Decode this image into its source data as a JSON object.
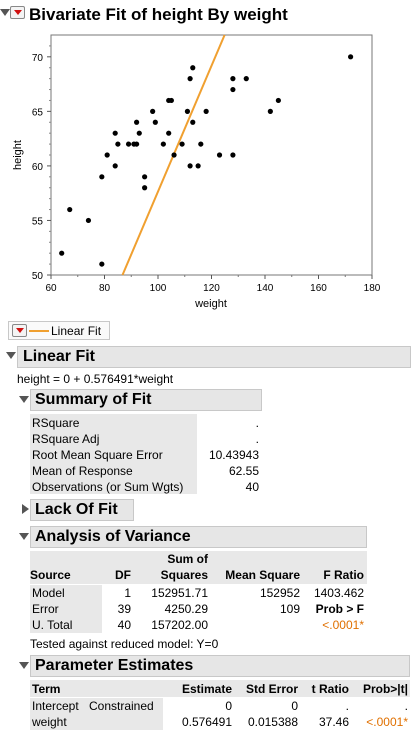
{
  "title": "Bivariate Fit of height By weight",
  "chart_data": {
    "type": "scatter",
    "xlabel": "weight",
    "ylabel": "height",
    "xlim": [
      60,
      180
    ],
    "ylim": [
      50,
      72
    ],
    "xticks": [
      "60",
      "80",
      "100",
      "120",
      "140",
      "160",
      "180"
    ],
    "yticks": [
      "50",
      "55",
      "60",
      "65",
      "70"
    ],
    "points": [
      [
        64,
        52
      ],
      [
        67,
        56
      ],
      [
        74,
        55
      ],
      [
        79,
        51
      ],
      [
        79,
        59
      ],
      [
        81,
        61
      ],
      [
        84,
        60
      ],
      [
        84,
        63
      ],
      [
        85,
        62
      ],
      [
        89,
        62
      ],
      [
        91,
        62
      ],
      [
        92,
        64
      ],
      [
        92,
        62
      ],
      [
        93,
        63
      ],
      [
        95,
        59
      ],
      [
        95,
        58
      ],
      [
        98,
        65
      ],
      [
        99,
        64
      ],
      [
        102,
        62
      ],
      [
        104,
        63
      ],
      [
        104,
        66
      ],
      [
        105,
        66
      ],
      [
        106,
        61
      ],
      [
        109,
        62
      ],
      [
        111,
        65
      ],
      [
        112,
        68
      ],
      [
        113,
        64
      ],
      [
        112,
        60
      ],
      [
        113,
        69
      ],
      [
        115,
        60
      ],
      [
        116,
        62
      ],
      [
        118,
        65
      ],
      [
        123,
        61
      ],
      [
        128,
        68
      ],
      [
        128,
        67
      ],
      [
        128,
        61
      ],
      [
        133,
        68
      ],
      [
        142,
        65
      ],
      [
        145,
        66
      ],
      [
        172,
        70
      ]
    ],
    "fit": {
      "intercept": 0,
      "slope": 0.576491,
      "color": "#f0a030"
    }
  },
  "legend": {
    "label": "Linear Fit"
  },
  "linear_fit": {
    "title": "Linear Fit",
    "equation": "height = 0 + 0.576491*weight"
  },
  "summary": {
    "title": "Summary of Fit",
    "rows": [
      {
        "label": "RSquare",
        "value": "."
      },
      {
        "label": "RSquare Adj",
        "value": "."
      },
      {
        "label": "Root Mean Square Error",
        "value": "10.43943"
      },
      {
        "label": "Mean of Response",
        "value": "62.55"
      },
      {
        "label": "Observations (or Sum Wgts)",
        "value": "40"
      }
    ]
  },
  "lack_of_fit": {
    "title": "Lack Of Fit"
  },
  "anova": {
    "title": "Analysis of Variance",
    "headers": {
      "source": "Source",
      "df": "DF",
      "ss_top": "Sum of",
      "ss_bottom": "Squares",
      "ms": "Mean Square",
      "f": "F Ratio"
    },
    "rows": [
      {
        "source": "Model",
        "df": "1",
        "ss": "152951.71",
        "ms": "152952",
        "f": "1403.462"
      },
      {
        "source": "Error",
        "df": "39",
        "ss": "4250.29",
        "ms": "109",
        "f": "Prob > F"
      },
      {
        "source": "U. Total",
        "df": "40",
        "ss": "157202.00",
        "ms": "",
        "f": "<.0001*"
      }
    ],
    "note": "Tested against reduced model: Y=0"
  },
  "params": {
    "title": "Parameter Estimates",
    "headers": {
      "term": "Term",
      "blank": "",
      "estimate": "Estimate",
      "se": "Std Error",
      "t": "t Ratio",
      "p": "Prob>|t|"
    },
    "rows": [
      {
        "term": "Intercept",
        "note": "Constrained",
        "estimate": "0",
        "se": "0",
        "t": ".",
        "p": "."
      },
      {
        "term": "weight",
        "note": "",
        "estimate": "0.576491",
        "se": "0.015388",
        "t": "37.46",
        "p": "<.0001*"
      }
    ]
  }
}
